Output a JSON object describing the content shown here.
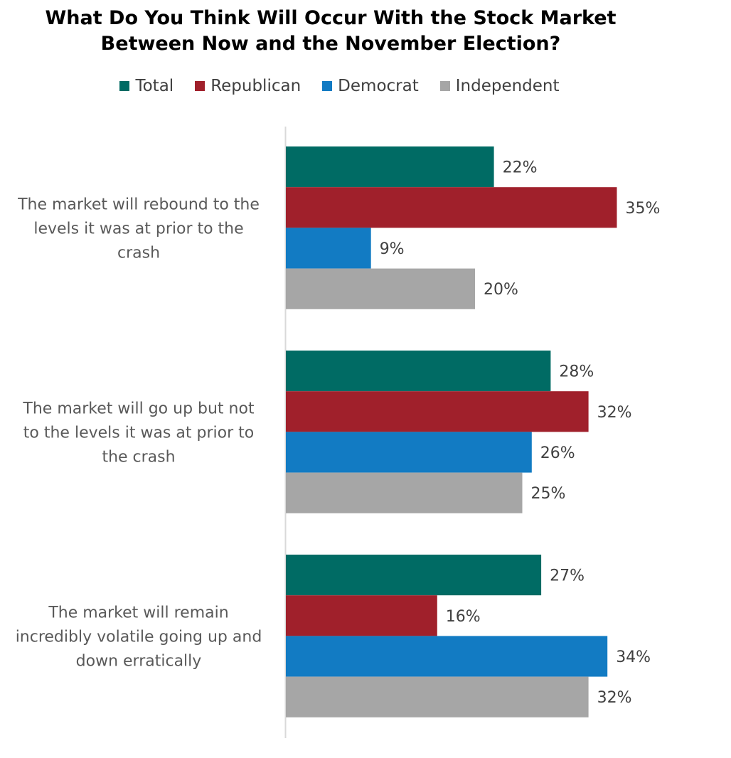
{
  "chart_data": {
    "type": "bar",
    "orientation": "horizontal",
    "title": [
      "What Do You Think Will Occur With the Stock Market",
      "Between Now and the November Election?"
    ],
    "categories": [
      [
        "The market will rebound to the",
        "levels it was at prior to the",
        "crash"
      ],
      [
        "The market will go up but not",
        "to the levels it was at prior to",
        "the crash"
      ],
      [
        "The market will remain",
        "incredibly volatile going up and",
        "down erratically"
      ]
    ],
    "series": [
      {
        "name": "Total",
        "color": "#006B64",
        "values": [
          22,
          28,
          27
        ],
        "labels": [
          "22%",
          "28%",
          "27%"
        ]
      },
      {
        "name": "Republican",
        "color": "#A0202B",
        "values": [
          35,
          32,
          16
        ],
        "labels": [
          "35%",
          "32%",
          "16%"
        ]
      },
      {
        "name": "Democrat",
        "color": "#127BC3",
        "values": [
          9,
          26,
          34
        ],
        "labels": [
          "9%",
          "26%",
          "34%"
        ]
      },
      {
        "name": "Independent",
        "color": "#A6A6A6",
        "values": [
          20,
          25,
          32
        ],
        "labels": [
          "20%",
          "25%",
          "32%"
        ]
      }
    ],
    "xlim": [
      0,
      35
    ],
    "grid": false,
    "legend_position": "top"
  }
}
